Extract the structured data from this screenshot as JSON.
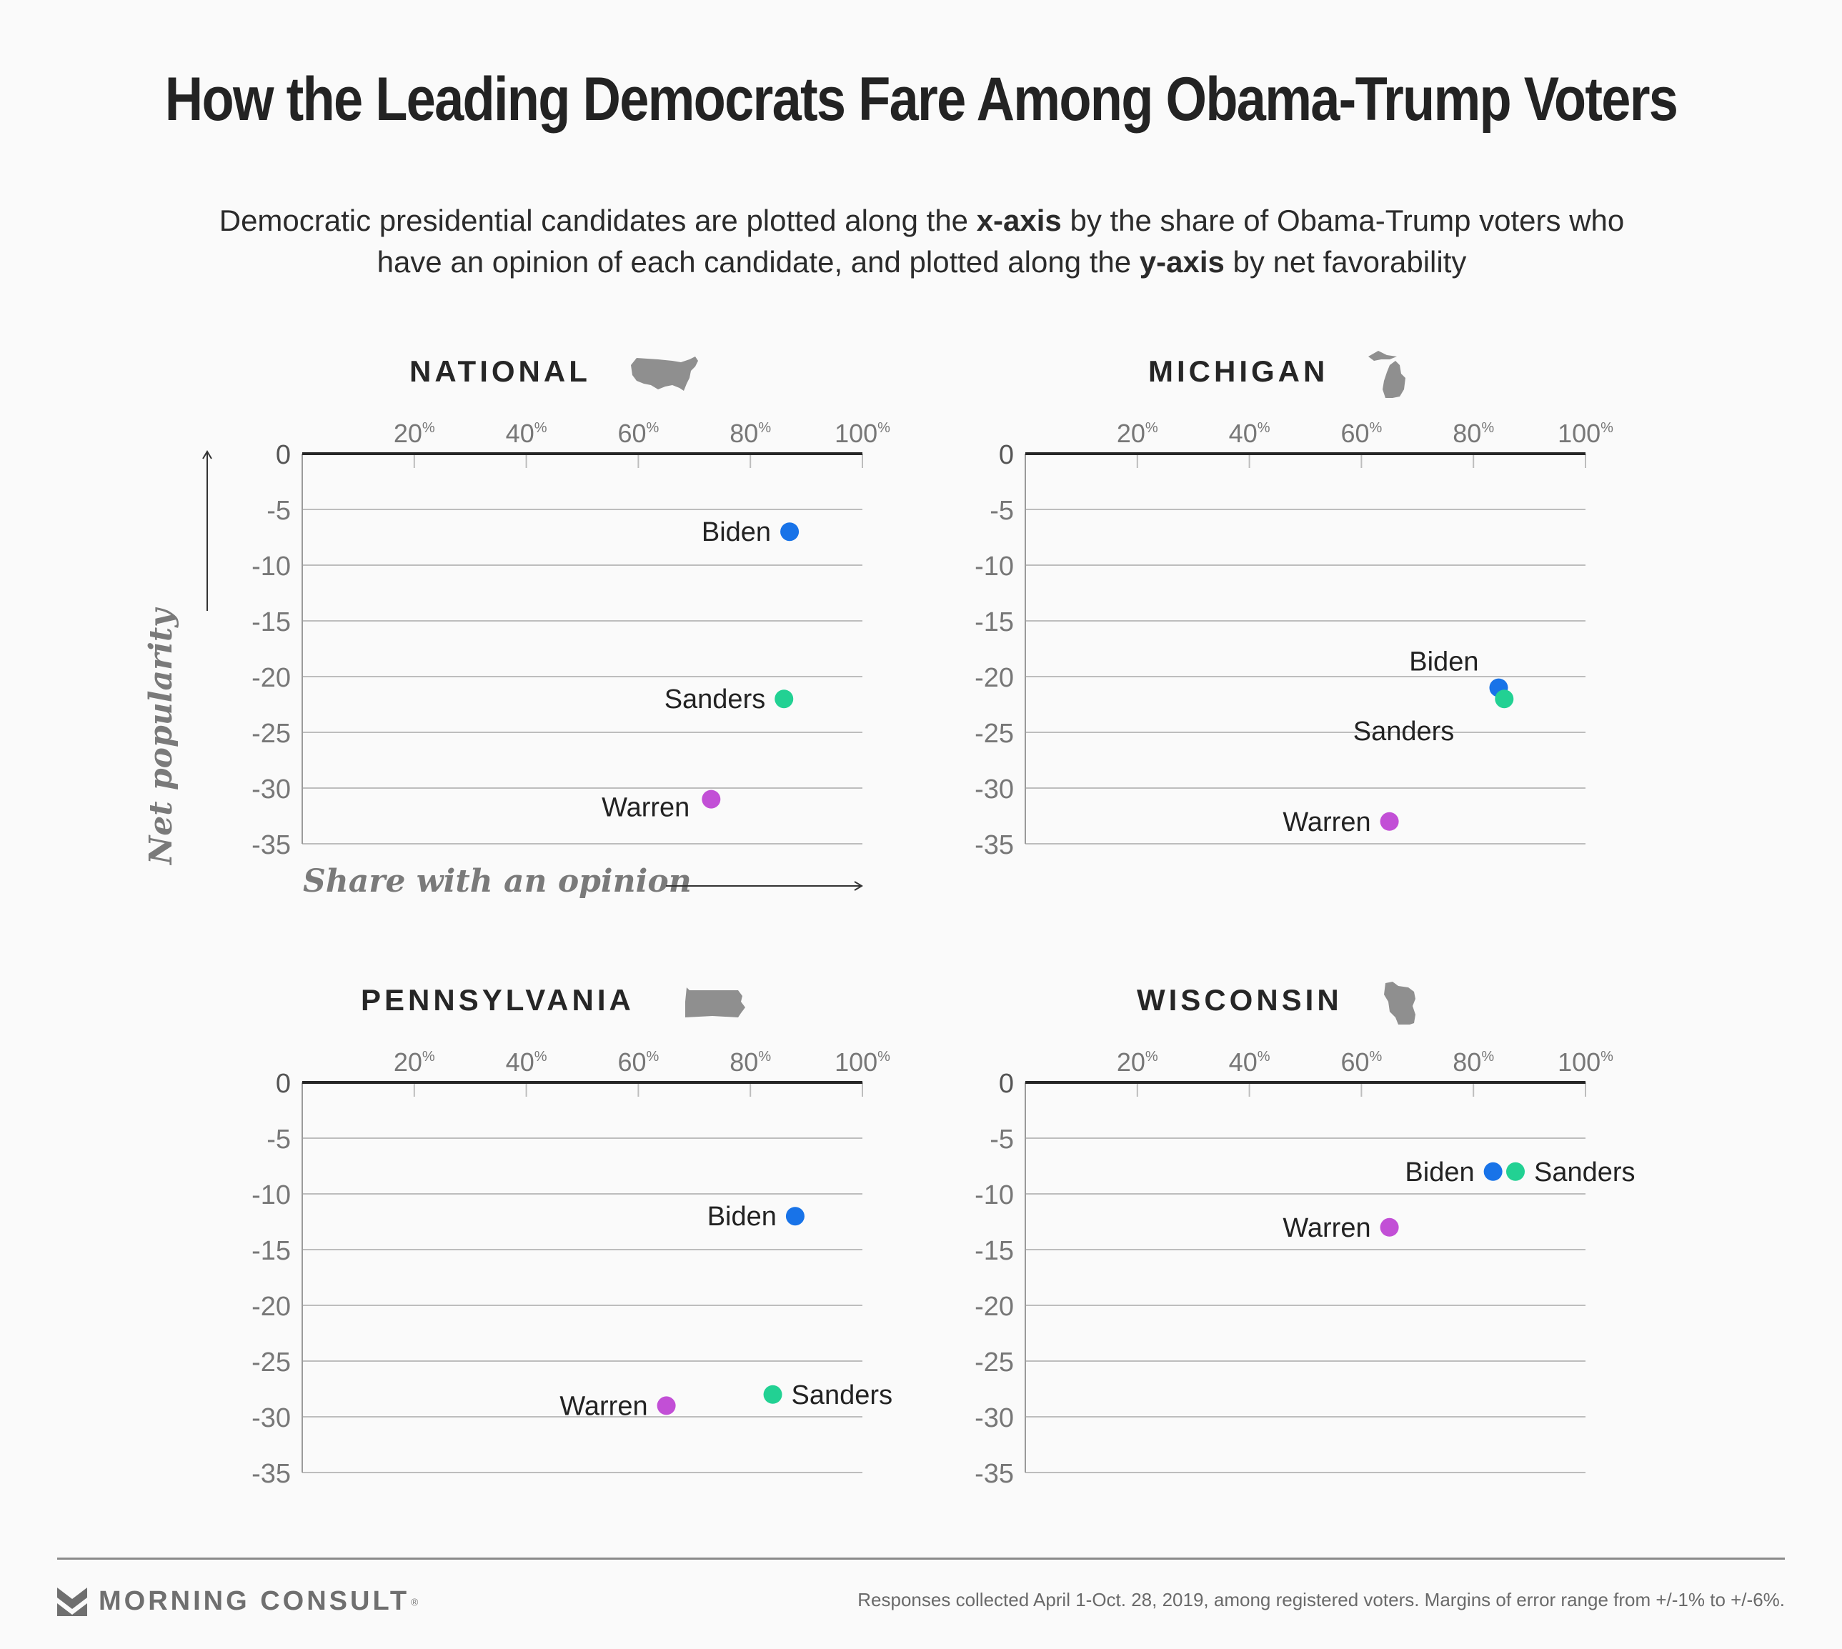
{
  "title": "How the Leading Democrats Fare Among Obama-Trump Voters",
  "subtitle": {
    "part1": "Democratic presidential candidates are plotted along the ",
    "bold1": "x-axis",
    "part2": " by the share of Obama-Trump voters who have an opinion of each candidate, and plotted along the ",
    "bold2": "y-axis",
    "part3": " by net favorability"
  },
  "axis_labels": {
    "y": "Net popularity",
    "x": "Share with an opinion"
  },
  "colors": {
    "Biden": "#1873e8",
    "Sanders": "#22d193",
    "Warren": "#c24fd6",
    "axis": "#262626",
    "grid": "#bdbdbd",
    "tick_text": "#777777",
    "map_icon": "#8f8f8f"
  },
  "footer": {
    "brand": "MORNING CONSULT",
    "brand_mark": "®",
    "source": "Responses collected April 1-Oct. 28, 2019, among registered voters. Margins of error range from +/-1% to +/-6%."
  },
  "chart_data": [
    {
      "type": "scatter",
      "title": "NATIONAL",
      "icon": "usa-map-icon",
      "xlabel": "Share with an opinion",
      "ylabel": "Net popularity",
      "xlim": [
        0,
        100
      ],
      "ylim": [
        -35,
        0
      ],
      "x_ticks": [
        "20%",
        "40%",
        "60%",
        "80%",
        "100%"
      ],
      "y_ticks": [
        "0",
        "-5",
        "-10",
        "-15",
        "-20",
        "-25",
        "-30",
        "-35"
      ],
      "grid": true,
      "points": [
        {
          "name": "Biden",
          "x": 87,
          "y": -7,
          "label_side": "left"
        },
        {
          "name": "Sanders",
          "x": 86,
          "y": -22,
          "label_side": "left"
        },
        {
          "name": "Warren",
          "x": 73,
          "y": -31,
          "label_side": "left-below"
        }
      ]
    },
    {
      "type": "scatter",
      "title": "MICHIGAN",
      "icon": "michigan-map-icon",
      "xlim": [
        0,
        100
      ],
      "ylim": [
        -35,
        0
      ],
      "x_ticks": [
        "20%",
        "40%",
        "60%",
        "80%",
        "100%"
      ],
      "y_ticks": [
        "0",
        "-5",
        "-10",
        "-15",
        "-20",
        "-25",
        "-30",
        "-35"
      ],
      "grid": true,
      "points": [
        {
          "name": "Biden",
          "x": 84.5,
          "y": -21,
          "label_side": "above"
        },
        {
          "name": "Sanders",
          "x": 85.5,
          "y": -22,
          "label_side": "below-left"
        },
        {
          "name": "Warren",
          "x": 65,
          "y": -33,
          "label_side": "left"
        }
      ]
    },
    {
      "type": "scatter",
      "title": "PENNSYLVANIA",
      "icon": "pennsylvania-map-icon",
      "xlim": [
        0,
        100
      ],
      "ylim": [
        -35,
        0
      ],
      "x_ticks": [
        "20%",
        "40%",
        "60%",
        "80%",
        "100%"
      ],
      "y_ticks": [
        "0",
        "-5",
        "-10",
        "-15",
        "-20",
        "-25",
        "-30",
        "-35"
      ],
      "grid": true,
      "points": [
        {
          "name": "Biden",
          "x": 88,
          "y": -12,
          "label_side": "left"
        },
        {
          "name": "Sanders",
          "x": 84,
          "y": -28,
          "label_side": "right"
        },
        {
          "name": "Warren",
          "x": 65,
          "y": -29,
          "label_side": "left"
        }
      ]
    },
    {
      "type": "scatter",
      "title": "WISCONSIN",
      "icon": "wisconsin-map-icon",
      "xlim": [
        0,
        100
      ],
      "ylim": [
        -35,
        0
      ],
      "x_ticks": [
        "20%",
        "40%",
        "60%",
        "80%",
        "100%"
      ],
      "y_ticks": [
        "0",
        "-5",
        "-10",
        "-15",
        "-20",
        "-25",
        "-30",
        "-35"
      ],
      "grid": true,
      "points": [
        {
          "name": "Biden",
          "x": 83.5,
          "y": -8,
          "label_side": "left"
        },
        {
          "name": "Sanders",
          "x": 87.5,
          "y": -8,
          "label_side": "right"
        },
        {
          "name": "Warren",
          "x": 65,
          "y": -13,
          "label_side": "left"
        }
      ]
    }
  ]
}
